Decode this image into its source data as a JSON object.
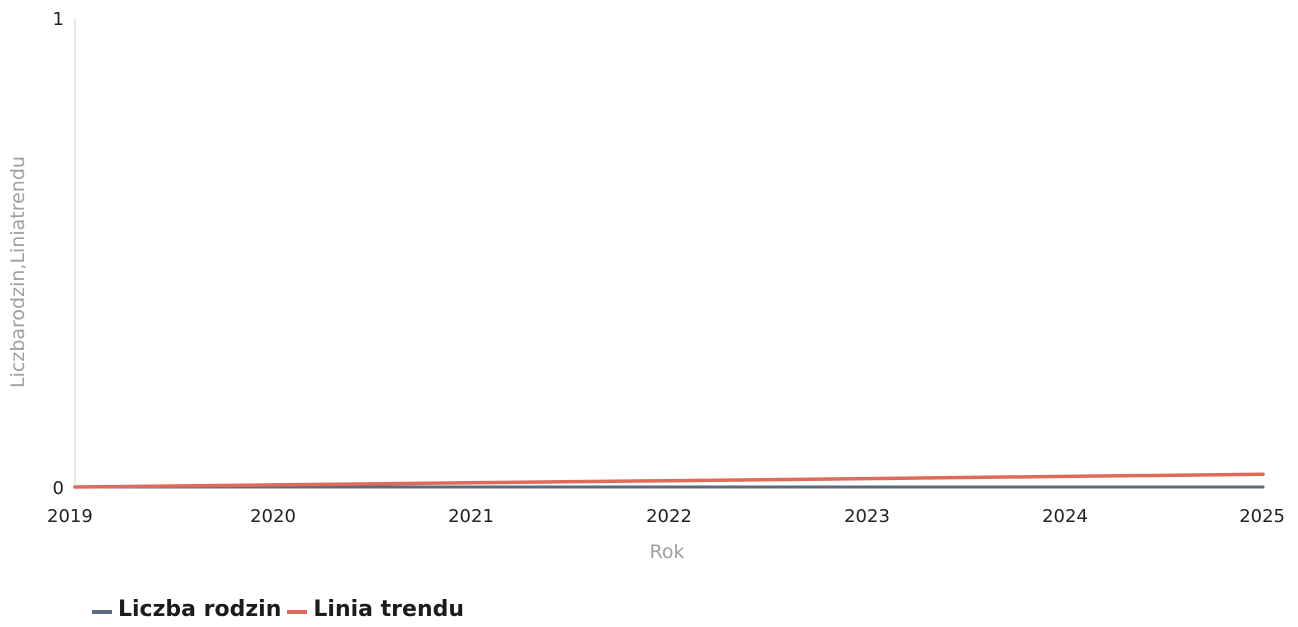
{
  "chart_data": {
    "type": "line",
    "x": [
      2019,
      2020,
      2021,
      2022,
      2023,
      2024,
      2025
    ],
    "xlabel": "Rok",
    "ylabel": "Liczbarodzin,Liniatrendu",
    "ylim": [
      0,
      1
    ],
    "yticks": [
      "0",
      "1"
    ],
    "xticks": [
      "2019",
      "2020",
      "2021",
      "2022",
      "2023",
      "2024",
      "2025"
    ],
    "grid": false,
    "legend_position": "bottom-left",
    "series": [
      {
        "name": "Liczba rodzin",
        "color": "#5b6a7d",
        "values": [
          0,
          0,
          0,
          0,
          0,
          0,
          0
        ]
      },
      {
        "name": "Linia trendu",
        "color": "#e06b5a",
        "values": [
          0,
          0.0045,
          0.009,
          0.0135,
          0.018,
          0.0225,
          0.027
        ]
      }
    ]
  }
}
